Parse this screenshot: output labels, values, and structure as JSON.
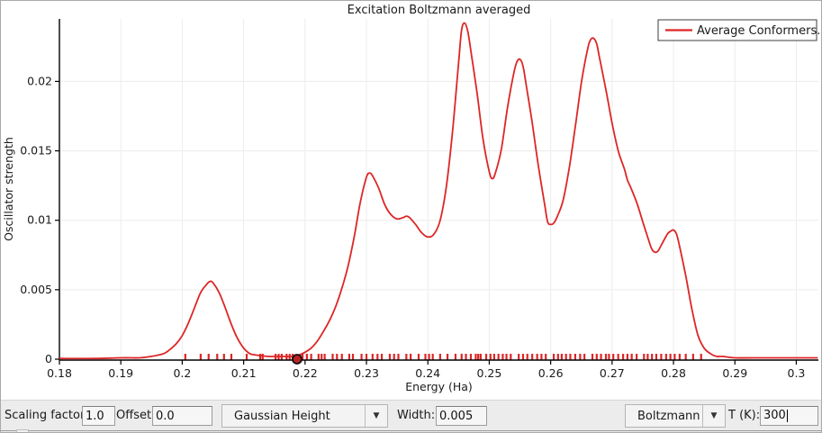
{
  "window": {
    "bg": "#ffffff",
    "toolbar_bg": "#ececec",
    "border": "#a9a9a9",
    "grid_color": "#ececec",
    "axis_color": "#000000",
    "text_color": "#1a1a1a"
  },
  "chart_data": {
    "type": "line",
    "title": "Excitation Boltzmann averaged",
    "xlabel": "Energy (Ha)",
    "ylabel": "Oscillator strength",
    "xlim": [
      0.18,
      0.3036
    ],
    "ylim": [
      0,
      0.0245
    ],
    "grid": true,
    "x_ticks": [
      {
        "v": 0.18,
        "label": "0.18"
      },
      {
        "v": 0.19,
        "label": "0.19"
      },
      {
        "v": 0.2,
        "label": "0.2"
      },
      {
        "v": 0.21,
        "label": "0.21"
      },
      {
        "v": 0.22,
        "label": "0.22"
      },
      {
        "v": 0.23,
        "label": "0.23"
      },
      {
        "v": 0.24,
        "label": "0.24"
      },
      {
        "v": 0.25,
        "label": "0.25"
      },
      {
        "v": 0.26,
        "label": "0.26"
      },
      {
        "v": 0.27,
        "label": "0.27"
      },
      {
        "v": 0.28,
        "label": "0.28"
      },
      {
        "v": 0.29,
        "label": "0.29"
      },
      {
        "v": 0.3,
        "label": "0.3"
      }
    ],
    "y_ticks": [
      {
        "v": 0,
        "label": "0"
      },
      {
        "v": 0.005,
        "label": "0.005"
      },
      {
        "v": 0.01,
        "label": "0.01"
      },
      {
        "v": 0.015,
        "label": "0.015"
      },
      {
        "v": 0.02,
        "label": "0.02"
      }
    ],
    "legend": {
      "position": "top-right",
      "entries": [
        {
          "label": "Average Conformers.",
          "color": "#dd2626"
        }
      ]
    },
    "series": [
      {
        "name": "Average Conformers.",
        "color": "#dd2626",
        "points": [
          [
            0.18,
            5e-05
          ],
          [
            0.186,
            5e-05
          ],
          [
            0.19,
            0.0001
          ],
          [
            0.193,
            0.0001
          ],
          [
            0.195,
            0.0002
          ],
          [
            0.197,
            0.0004
          ],
          [
            0.198,
            0.0007
          ],
          [
            0.199,
            0.0011
          ],
          [
            0.2,
            0.0017
          ],
          [
            0.201,
            0.0026
          ],
          [
            0.202,
            0.0037
          ],
          [
            0.203,
            0.0048
          ],
          [
            0.204,
            0.0054
          ],
          [
            0.2045,
            0.0056
          ],
          [
            0.205,
            0.0055
          ],
          [
            0.206,
            0.0048
          ],
          [
            0.207,
            0.0037
          ],
          [
            0.208,
            0.0025
          ],
          [
            0.209,
            0.0015
          ],
          [
            0.21,
            0.0008
          ],
          [
            0.211,
            0.0004
          ],
          [
            0.212,
            0.0003
          ],
          [
            0.214,
            0.0002
          ],
          [
            0.216,
            0.0002
          ],
          [
            0.218,
            0.0002
          ],
          [
            0.219,
            0.0003
          ],
          [
            0.22,
            0.0005
          ],
          [
            0.221,
            0.0008
          ],
          [
            0.222,
            0.0013
          ],
          [
            0.223,
            0.002
          ],
          [
            0.224,
            0.0028
          ],
          [
            0.225,
            0.0038
          ],
          [
            0.226,
            0.0051
          ],
          [
            0.227,
            0.0067
          ],
          [
            0.228,
            0.0088
          ],
          [
            0.229,
            0.0113
          ],
          [
            0.23,
            0.0131
          ],
          [
            0.2305,
            0.0134
          ],
          [
            0.231,
            0.0132
          ],
          [
            0.232,
            0.0123
          ],
          [
            0.233,
            0.0111
          ],
          [
            0.234,
            0.0104
          ],
          [
            0.235,
            0.0101
          ],
          [
            0.236,
            0.0102
          ],
          [
            0.2365,
            0.0103
          ],
          [
            0.237,
            0.0102
          ],
          [
            0.238,
            0.0097
          ],
          [
            0.239,
            0.0091
          ],
          [
            0.24,
            0.0088
          ],
          [
            0.241,
            0.009
          ],
          [
            0.242,
            0.01
          ],
          [
            0.243,
            0.0124
          ],
          [
            0.244,
            0.0163
          ],
          [
            0.245,
            0.0213
          ],
          [
            0.2455,
            0.0237
          ],
          [
            0.246,
            0.0242
          ],
          [
            0.2465,
            0.0236
          ],
          [
            0.247,
            0.0222
          ],
          [
            0.248,
            0.0192
          ],
          [
            0.249,
            0.0158
          ],
          [
            0.25,
            0.0135
          ],
          [
            0.2505,
            0.013
          ],
          [
            0.251,
            0.0134
          ],
          [
            0.252,
            0.0152
          ],
          [
            0.253,
            0.0182
          ],
          [
            0.254,
            0.0206
          ],
          [
            0.2545,
            0.0214
          ],
          [
            0.255,
            0.0216
          ],
          [
            0.2555,
            0.0211
          ],
          [
            0.256,
            0.0198
          ],
          [
            0.257,
            0.017
          ],
          [
            0.258,
            0.0139
          ],
          [
            0.259,
            0.0112
          ],
          [
            0.2595,
            0.0099
          ],
          [
            0.26,
            0.0097
          ],
          [
            0.2605,
            0.0098
          ],
          [
            0.261,
            0.0102
          ],
          [
            0.262,
            0.0114
          ],
          [
            0.263,
            0.0137
          ],
          [
            0.264,
            0.0167
          ],
          [
            0.265,
            0.0199
          ],
          [
            0.266,
            0.0223
          ],
          [
            0.2665,
            0.023
          ],
          [
            0.267,
            0.0231
          ],
          [
            0.2675,
            0.0227
          ],
          [
            0.268,
            0.0216
          ],
          [
            0.269,
            0.0194
          ],
          [
            0.27,
            0.017
          ],
          [
            0.271,
            0.015
          ],
          [
            0.272,
            0.0137
          ],
          [
            0.2725,
            0.0129
          ],
          [
            0.273,
            0.0124
          ],
          [
            0.274,
            0.0113
          ],
          [
            0.275,
            0.0099
          ],
          [
            0.276,
            0.0085
          ],
          [
            0.2765,
            0.0079
          ],
          [
            0.277,
            0.0077
          ],
          [
            0.2775,
            0.0078
          ],
          [
            0.278,
            0.0082
          ],
          [
            0.279,
            0.009
          ],
          [
            0.2795,
            0.0092
          ],
          [
            0.28,
            0.0093
          ],
          [
            0.2805,
            0.009
          ],
          [
            0.281,
            0.0081
          ],
          [
            0.282,
            0.006
          ],
          [
            0.283,
            0.0036
          ],
          [
            0.284,
            0.0017
          ],
          [
            0.285,
            0.0008
          ],
          [
            0.286,
            0.0004
          ],
          [
            0.287,
            0.0002
          ],
          [
            0.288,
            0.0002
          ],
          [
            0.29,
            0.0001
          ],
          [
            0.293,
            0.0001
          ],
          [
            0.297,
            0.0001
          ],
          [
            0.3035,
            0.0001
          ]
        ]
      }
    ],
    "stick_spectrum": {
      "color": "#dd2626",
      "energies": [
        0.2005,
        0.203,
        0.2043,
        0.2057,
        0.2068,
        0.208,
        0.2105,
        0.2127,
        0.2131,
        0.2152,
        0.2157,
        0.2162,
        0.217,
        0.2175,
        0.218,
        0.2192,
        0.2196,
        0.2203,
        0.221,
        0.2222,
        0.2227,
        0.2232,
        0.2245,
        0.2252,
        0.226,
        0.2272,
        0.2278,
        0.2292,
        0.23,
        0.231,
        0.2318,
        0.2325,
        0.2338,
        0.2345,
        0.2352,
        0.2365,
        0.2372,
        0.2385,
        0.2396,
        0.2402,
        0.2408,
        0.242,
        0.2432,
        0.2445,
        0.2455,
        0.2462,
        0.247,
        0.2478,
        0.2482,
        0.2486,
        0.2495,
        0.2502,
        0.2508,
        0.2515,
        0.2522,
        0.2528,
        0.2535,
        0.2548,
        0.2555,
        0.2562,
        0.257,
        0.2578,
        0.2585,
        0.2592,
        0.2605,
        0.2612,
        0.2618,
        0.2625,
        0.2632,
        0.264,
        0.2648,
        0.2655,
        0.2668,
        0.2675,
        0.2682,
        0.269,
        0.2695,
        0.2702,
        0.271,
        0.2718,
        0.2725,
        0.2732,
        0.274,
        0.2752,
        0.2758,
        0.2765,
        0.2772,
        0.278,
        0.2788,
        0.2795,
        0.2802,
        0.281,
        0.282,
        0.2832,
        0.2845
      ]
    },
    "selected_marker": {
      "x": 0.2187,
      "y": 0,
      "shape": "circle",
      "stroke": "#101010",
      "fill": "#bb2222"
    }
  },
  "toolbar": {
    "scaling_factor": {
      "label": "Scaling factor:",
      "value": "1.0"
    },
    "offset": {
      "label": "Offset:",
      "value": "0.0"
    },
    "lineshape_select": {
      "value": "Gaussian Height",
      "arrow": "▼"
    },
    "width": {
      "label": "Width:",
      "value": "0.005"
    },
    "weighting_select": {
      "value": "Boltzmann",
      "arrow": "▼"
    },
    "temperature": {
      "label": "T (K):",
      "value": "300"
    }
  }
}
